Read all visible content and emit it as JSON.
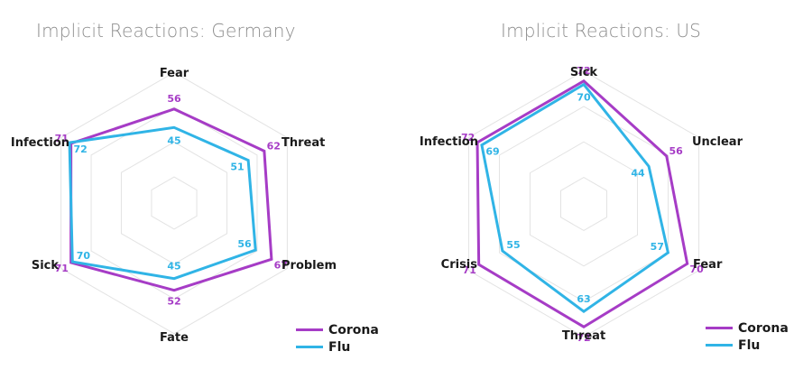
{
  "colors": {
    "corona": "#a63cc6",
    "flu": "#30b4e6",
    "grid": "#e3e3e3"
  },
  "chart_data": [
    {
      "type": "radar",
      "title": "Implicit Reactions: Germany",
      "axes": [
        "Fear",
        "Threat",
        "Problem",
        "Fate",
        "Sick",
        "Infection"
      ],
      "rlim": [
        0,
        80
      ],
      "grid": true,
      "legend": "bottom-right",
      "series": [
        {
          "name": "Corona",
          "values": [
            56,
            62,
            67,
            52,
            71,
            71
          ]
        },
        {
          "name": "Flu",
          "values": [
            45,
            51,
            56,
            45,
            70,
            72
          ]
        }
      ]
    },
    {
      "type": "radar",
      "title": "Implicit Reactions: US",
      "axes": [
        "Sick",
        "Unclear",
        "Fear",
        "Threat",
        "Crisis",
        "Infection"
      ],
      "rlim": [
        0,
        80
      ],
      "grid": true,
      "legend": "bottom-right",
      "series": [
        {
          "name": "Corona",
          "values": [
            72,
            56,
            70,
            72,
            71,
            72
          ]
        },
        {
          "name": "Flu",
          "values": [
            70,
            44,
            57,
            63,
            55,
            69
          ]
        }
      ]
    }
  ]
}
